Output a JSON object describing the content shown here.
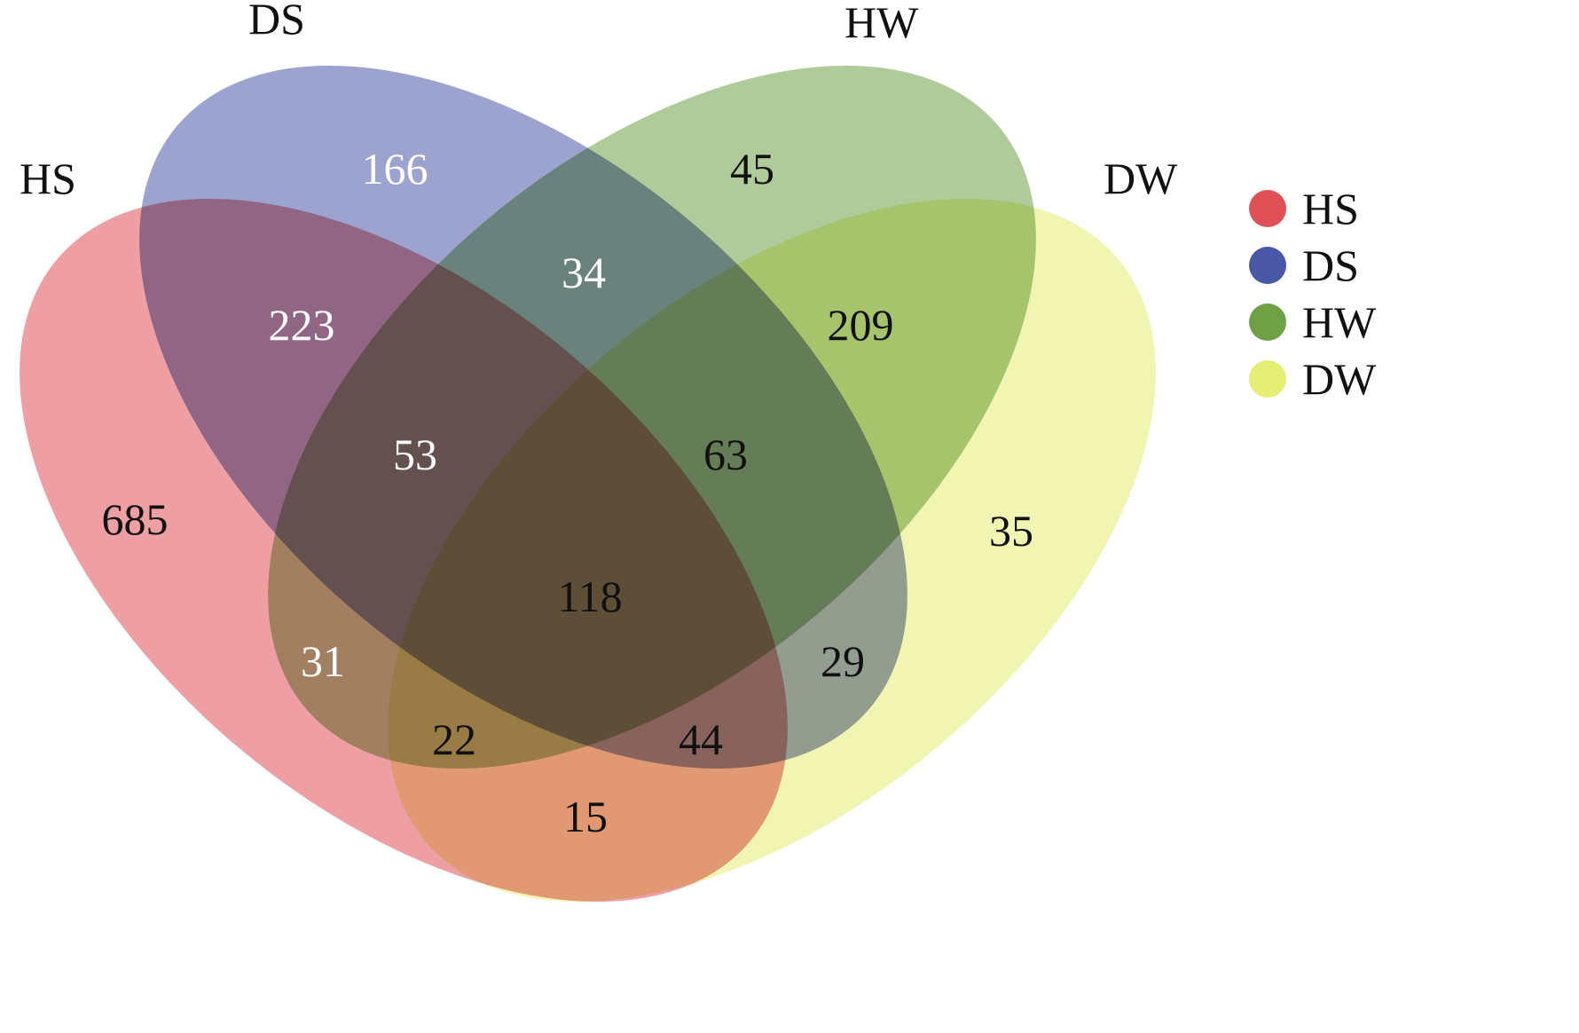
{
  "sets": [
    {
      "id": "HS",
      "label": "HS",
      "color": "#e05057"
    },
    {
      "id": "DS",
      "label": "DS",
      "color": "#4857a6"
    },
    {
      "id": "HW",
      "label": "HW",
      "color": "#6ea146"
    },
    {
      "id": "DW",
      "label": "DW",
      "color": "#e3ee73"
    }
  ],
  "regions": [
    {
      "sets": [
        "HS"
      ],
      "value": "685"
    },
    {
      "sets": [
        "DS"
      ],
      "value": "166"
    },
    {
      "sets": [
        "HW"
      ],
      "value": "45"
    },
    {
      "sets": [
        "DW"
      ],
      "value": "35"
    },
    {
      "sets": [
        "HS",
        "DS"
      ],
      "value": "223"
    },
    {
      "sets": [
        "DS",
        "HW"
      ],
      "value": "34"
    },
    {
      "sets": [
        "HW",
        "DW"
      ],
      "value": "209"
    },
    {
      "sets": [
        "HS",
        "HW"
      ],
      "value": "31"
    },
    {
      "sets": [
        "DS",
        "DW"
      ],
      "value": "29"
    },
    {
      "sets": [
        "HS",
        "DW"
      ],
      "value": "15"
    },
    {
      "sets": [
        "HS",
        "DS",
        "HW"
      ],
      "value": "53"
    },
    {
      "sets": [
        "DS",
        "HW",
        "DW"
      ],
      "value": "63"
    },
    {
      "sets": [
        "HS",
        "HW",
        "DW"
      ],
      "value": "22"
    },
    {
      "sets": [
        "HS",
        "DS",
        "DW"
      ],
      "value": "44"
    },
    {
      "sets": [
        "HS",
        "DS",
        "HW",
        "DW"
      ],
      "value": "118"
    }
  ],
  "legend": [
    {
      "label": "HS",
      "color": "#e05057"
    },
    {
      "label": "DS",
      "color": "#4857a6"
    },
    {
      "label": "HW",
      "color": "#6ea146"
    },
    {
      "label": "DW",
      "color": "#e3ee73"
    }
  ]
}
